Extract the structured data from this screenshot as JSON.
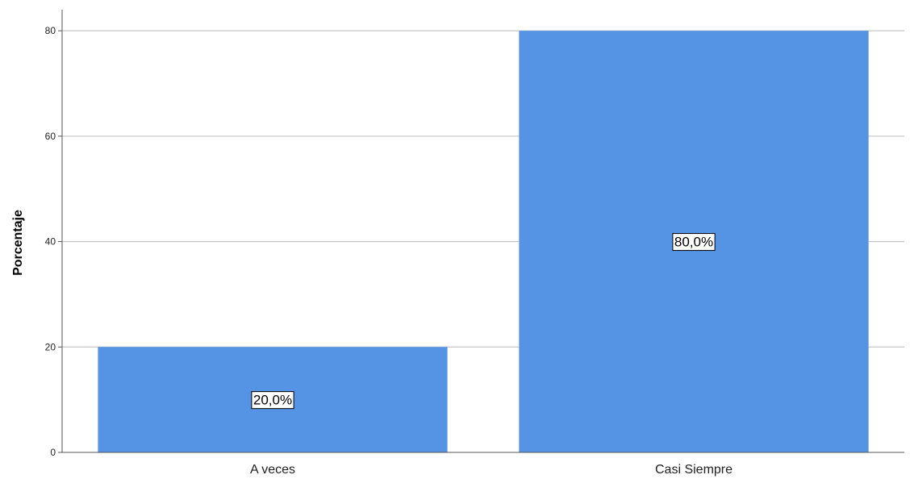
{
  "chart_data": {
    "type": "bar",
    "categories": [
      "A veces",
      "Casi Siempre"
    ],
    "values": [
      20,
      80
    ],
    "data_labels": [
      "20,0%",
      "80,0%"
    ],
    "title": "",
    "xlabel": "",
    "ylabel": "Porcentaje",
    "ylim": [
      0,
      84
    ],
    "yticks": [
      0,
      20,
      40,
      60,
      80
    ],
    "grid": true,
    "legend": "none",
    "bar_color": "#5594E4",
    "grid_color": "#C8C8C8",
    "axis_color": "#555555"
  }
}
